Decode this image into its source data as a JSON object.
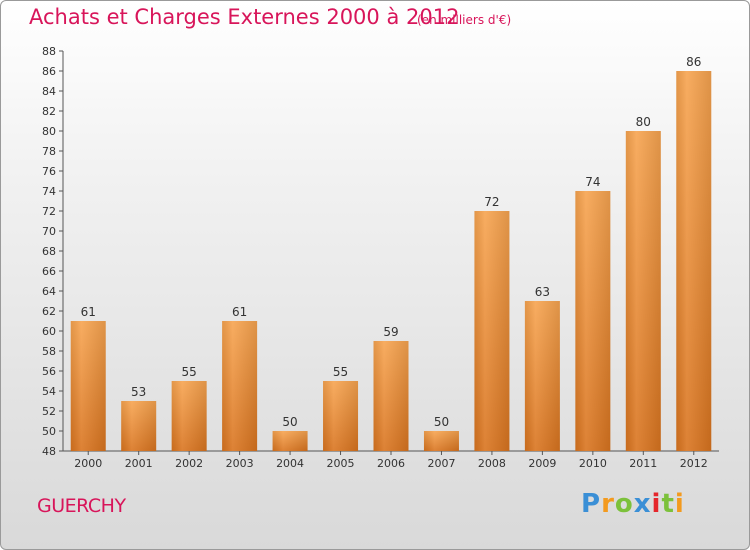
{
  "header": {
    "title": "Achats et Charges Externes 2000 à 2012",
    "subtitle": "(en milliers d'€)"
  },
  "footer": {
    "commune": "GUERCHY",
    "logo": [
      "P",
      "r",
      "o",
      "x",
      "i",
      "t",
      "i"
    ]
  },
  "colors": {
    "title": "#d8155a",
    "bar_top": "#f7a450",
    "bar_bottom": "#d9741f",
    "axis": "#555555"
  },
  "chart_data": {
    "type": "bar",
    "categories": [
      "2000",
      "2001",
      "2002",
      "2003",
      "2004",
      "2005",
      "2006",
      "2007",
      "2008",
      "2009",
      "2010",
      "2011",
      "2012"
    ],
    "values": [
      61,
      53,
      55,
      61,
      50,
      55,
      59,
      50,
      72,
      63,
      74,
      80,
      86
    ],
    "title": "Achats et Charges Externes 2000 à 2012",
    "subtitle": "(en milliers d'€)",
    "ylim": [
      48,
      88
    ],
    "yticks": [
      48,
      50,
      52,
      54,
      56,
      58,
      60,
      62,
      64,
      66,
      68,
      70,
      72,
      74,
      76,
      78,
      80,
      82,
      84,
      86,
      88
    ],
    "grid": false,
    "data_labels": true
  }
}
